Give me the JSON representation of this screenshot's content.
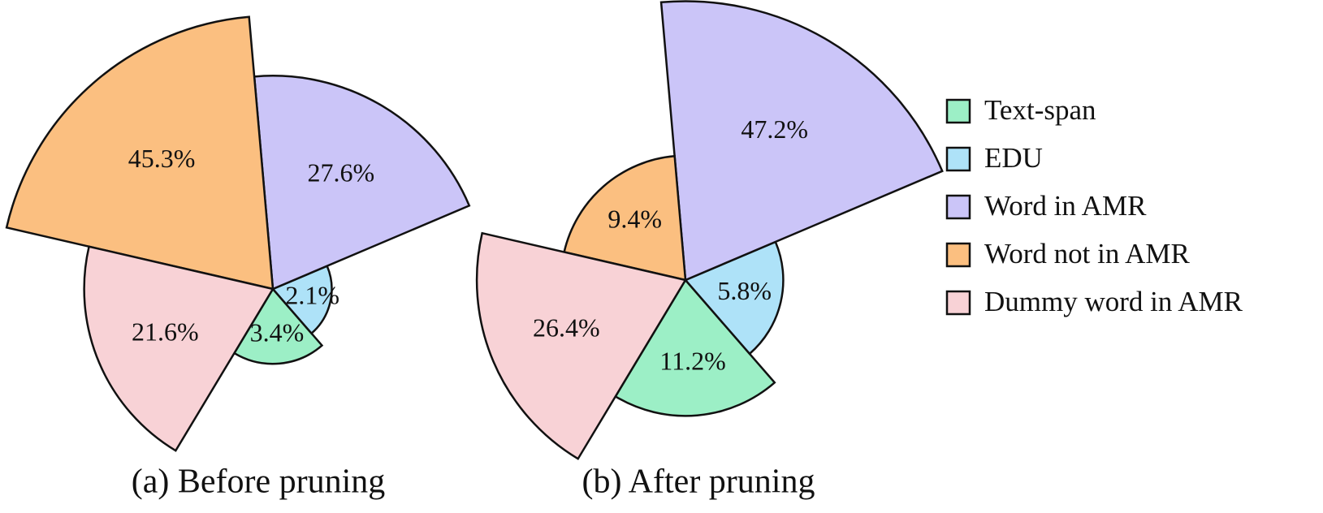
{
  "chart_data": [
    {
      "type": "pie",
      "title": "(a) Before pruning",
      "categories": [
        "Text-span",
        "EDU",
        "Word in AMR",
        "Word not in AMR",
        "Dummy word in AMR"
      ],
      "values": [
        3.4,
        2.1,
        27.6,
        45.3,
        21.6
      ],
      "value_labels": [
        "3.4%",
        "2.1%",
        "27.6%",
        "45.3%",
        "21.6%"
      ],
      "colors": [
        "#9cefc6",
        "#aee2f8",
        "#cbc5f8",
        "#fbbf80",
        "#f8d2d6"
      ]
    },
    {
      "type": "pie",
      "title": "(b) After pruning",
      "categories": [
        "Text-span",
        "EDU",
        "Word in AMR",
        "Word not in AMR",
        "Dummy word in AMR"
      ],
      "values": [
        11.2,
        5.8,
        47.2,
        9.4,
        26.4
      ],
      "value_labels": [
        "11.2%",
        "5.8%",
        "47.2%",
        "9.4%",
        "26.4%"
      ],
      "colors": [
        "#9cefc6",
        "#aee2f8",
        "#cbc5f8",
        "#fbbf80",
        "#f8d2d6"
      ]
    }
  ]
}
